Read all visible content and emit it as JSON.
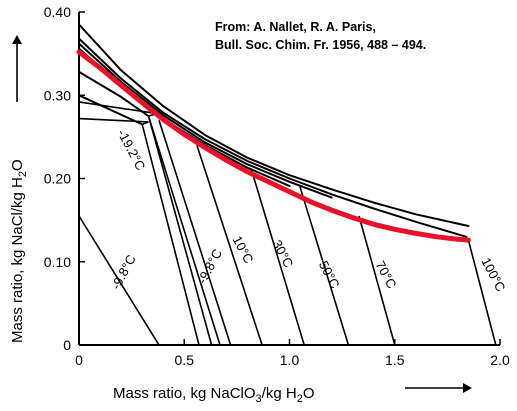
{
  "source": {
    "line1": "From: A. Nallet, R. A. Paris,",
    "line2": "Bull. Soc. Chim. Fr.  1956, 488 – 494."
  },
  "chart_data": {
    "type": "line",
    "xlabel": "Mass ratio, kg NaClO3/kg H2O",
    "ylabel": "Mass ratio, kg NaCl/kg H2O",
    "xlabel_parts": {
      "main": "Mass ratio, kg NaClO",
      "sub1": "3",
      "mid": "/kg H",
      "sub2": "2",
      "end": "O"
    },
    "ylabel_parts": {
      "main": "Mass ratio, kg NaCl/kg H",
      "sub": "2",
      "end": "O"
    },
    "xlim": [
      0,
      2.0
    ],
    "ylim": [
      0,
      0.4
    ],
    "xticks": [
      0,
      0.5,
      1.0,
      1.5,
      2.0
    ],
    "xtick_labels": [
      "0",
      "0.5",
      "1.0",
      "1.5",
      "2.0"
    ],
    "yticks": [
      0,
      0.1,
      0.2,
      0.3,
      0.4
    ],
    "ytick_labels": [
      "0",
      "0.10",
      "0.20",
      "0.30",
      "0.40"
    ],
    "saturation_curves": [
      {
        "x": [
          0,
          0.2,
          0.4,
          0.6,
          0.8,
          1.0,
          1.2,
          1.4,
          1.6,
          1.85
        ],
        "y": [
          0.385,
          0.33,
          0.287,
          0.252,
          0.225,
          0.204,
          0.187,
          0.171,
          0.157,
          0.143
        ]
      },
      {
        "x": [
          0,
          0.2,
          0.4,
          0.6,
          0.8,
          1.0,
          1.2,
          1.4,
          1.6,
          1.84
        ],
        "y": [
          0.368,
          0.32,
          0.279,
          0.247,
          0.221,
          0.2,
          0.181,
          0.164,
          0.148,
          0.13
        ]
      },
      {
        "x": [
          0,
          0.2,
          0.4,
          0.6,
          0.8,
          1.0,
          1.2
        ],
        "y": [
          0.362,
          0.316,
          0.276,
          0.243,
          0.217,
          0.196,
          0.177
        ]
      },
      {
        "x": [
          0,
          0.2,
          0.4,
          0.6,
          0.8,
          1.0
        ],
        "y": [
          0.356,
          0.312,
          0.272,
          0.24,
          0.213,
          0.191
        ]
      },
      {
        "x": [
          0,
          0.2,
          0.33
        ],
        "y": [
          0.328,
          0.298,
          0.275
        ]
      },
      {
        "x": [
          0,
          0.3
        ],
        "y": [
          0.3,
          0.265
        ]
      }
    ],
    "red_curve": {
      "color": "#e8102a",
      "x": [
        0,
        0.1,
        0.2,
        0.3,
        0.4,
        0.5,
        0.6,
        0.7,
        0.8,
        0.9,
        1.0,
        1.1,
        1.2,
        1.3,
        1.4,
        1.5,
        1.6,
        1.7,
        1.8,
        1.85
      ],
      "y": [
        0.352,
        0.333,
        0.312,
        0.291,
        0.271,
        0.253,
        0.237,
        0.222,
        0.208,
        0.196,
        0.184,
        0.172,
        0.162,
        0.153,
        0.145,
        0.139,
        0.134,
        0.13,
        0.127,
        0.126
      ]
    },
    "isotherm_lines": [
      {
        "x": [
          0,
          0.38
        ],
        "y": [
          0.155,
          0
        ]
      },
      {
        "x": [
          0,
          0.33,
          0.3,
          0.57
        ],
        "y": [
          0.272,
          0.268,
          0.265,
          0
        ]
      },
      {
        "x": [
          0,
          0.37,
          0.33,
          0.63
        ],
        "y": [
          0.292,
          0.278,
          0.275,
          0
        ]
      },
      {
        "x": [
          0.33,
          0.67
        ],
        "y": [
          0.275,
          0
        ]
      },
      {
        "x": [
          0.38,
          0.72
        ],
        "y": [
          0.27,
          0
        ]
      },
      {
        "x": [
          0.56,
          0.87
        ],
        "y": [
          0.24,
          0
        ]
      },
      {
        "x": [
          0.82,
          1.07
        ],
        "y": [
          0.21,
          0
        ]
      },
      {
        "x": [
          1.05,
          1.28
        ],
        "y": [
          0.19,
          0
        ]
      },
      {
        "x": [
          1.33,
          1.5
        ],
        "y": [
          0.155,
          0
        ]
      },
      {
        "x": [
          1.85,
          1.98
        ],
        "y": [
          0.126,
          0
        ]
      }
    ],
    "isotherm_labels": [
      {
        "text": "-9.8°C",
        "x": 0.23,
        "y": 0.085,
        "rot": -62
      },
      {
        "text": "-19.2°C",
        "x": 0.23,
        "y": 0.232,
        "rot": 62
      },
      {
        "text": "-9.8°C",
        "x": 0.64,
        "y": 0.092,
        "rot": -62
      },
      {
        "text": "10°C",
        "x": 0.76,
        "y": 0.112,
        "rot": 62
      },
      {
        "text": "30°C",
        "x": 0.95,
        "y": 0.107,
        "rot": 62
      },
      {
        "text": "50°C",
        "x": 1.17,
        "y": 0.082,
        "rot": 62
      },
      {
        "text": "70°C",
        "x": 1.44,
        "y": 0.082,
        "rot": 62
      },
      {
        "text": "100°C",
        "x": 1.95,
        "y": 0.082,
        "rot": 62
      }
    ]
  }
}
